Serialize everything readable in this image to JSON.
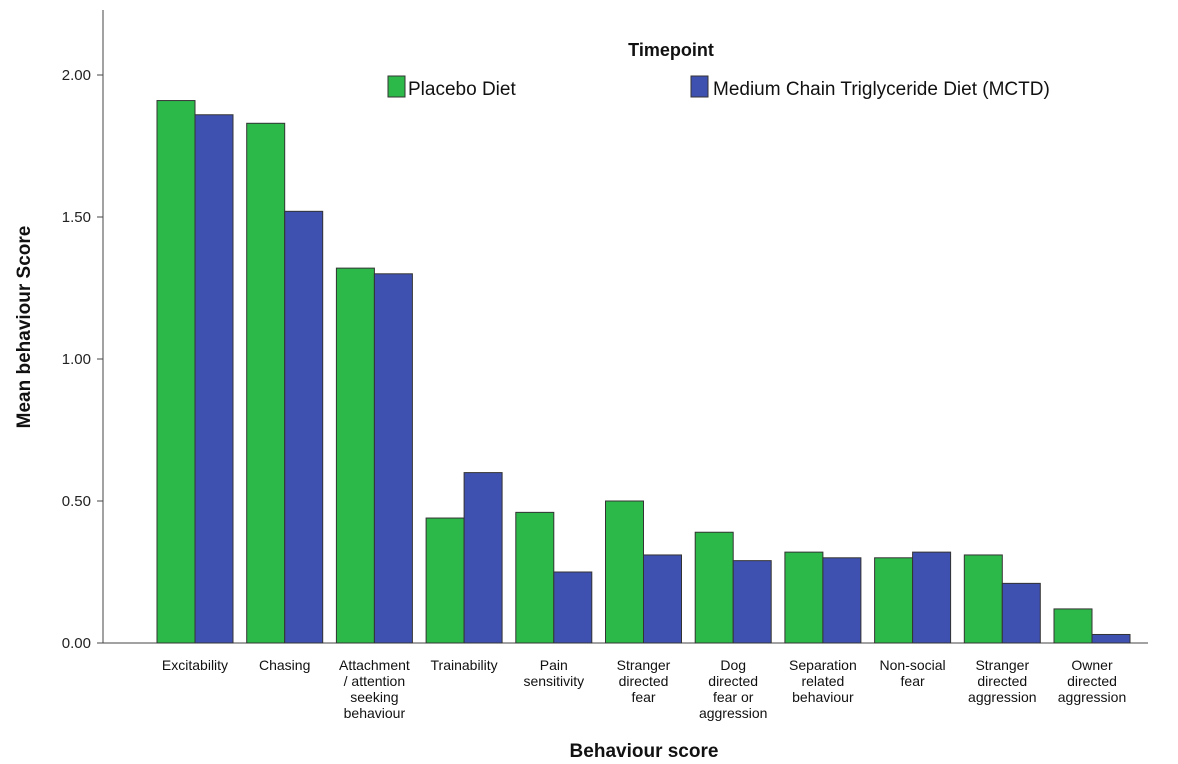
{
  "chart_data": {
    "type": "bar",
    "ylabel": "Mean behaviour Score",
    "xlabel": "Behaviour score",
    "legend_title": "Timepoint",
    "legend_position": "top-right",
    "ylim": [
      0,
      2.2
    ],
    "yticks": [
      "0.00",
      "0.50",
      "1.00",
      "1.50",
      "2.00"
    ],
    "ytick_values": [
      0,
      0.5,
      1.0,
      1.5,
      2.0
    ],
    "grid": false,
    "categories": [
      [
        "Excitability"
      ],
      [
        "Chasing"
      ],
      [
        "Attachment",
        "/ attention",
        "seeking",
        "behaviour"
      ],
      [
        "Trainability"
      ],
      [
        "Pain",
        "sensitivity"
      ],
      [
        "Stranger",
        "directed",
        "fear"
      ],
      [
        "Dog",
        "directed",
        "fear or",
        "aggression"
      ],
      [
        "Separation",
        "related",
        "behaviour"
      ],
      [
        "Non-social",
        "fear"
      ],
      [
        "Stranger",
        "directed",
        "aggression"
      ],
      [
        "Owner",
        "directed",
        "aggression"
      ]
    ],
    "series": [
      {
        "name": "Placebo Diet",
        "color": "#2db84a",
        "values": [
          1.91,
          1.83,
          1.32,
          0.44,
          0.46,
          0.5,
          0.39,
          0.32,
          0.3,
          0.31,
          0.12
        ]
      },
      {
        "name": "Medium Chain Triglyceride Diet (MCTD)",
        "color": "#3f51b0",
        "values": [
          1.86,
          1.52,
          1.3,
          0.6,
          0.25,
          0.31,
          0.29,
          0.3,
          0.32,
          0.21,
          0.03
        ]
      }
    ]
  }
}
